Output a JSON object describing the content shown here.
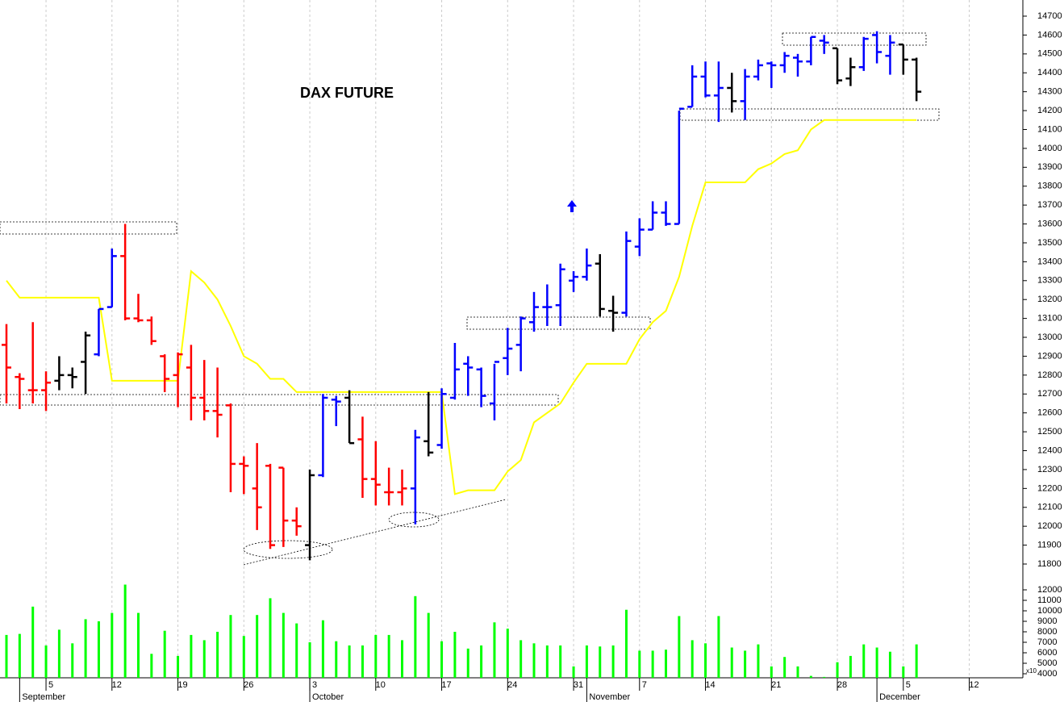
{
  "chart_data": {
    "type": "ohlc",
    "title": "DAX FUTURE",
    "categories": [
      null,
      null,
      null,
      null,
      null,
      null,
      null,
      null,
      null,
      null,
      null,
      null,
      null,
      null,
      null,
      null,
      null,
      null,
      null,
      null,
      null,
      null,
      null,
      null,
      null,
      null,
      null,
      null,
      null,
      null,
      null,
      null,
      null,
      null,
      null,
      null,
      null,
      null,
      null,
      null,
      null,
      null,
      null,
      null,
      null,
      null,
      null,
      null,
      null,
      null,
      null,
      null,
      null,
      null,
      null,
      null,
      null,
      null,
      null,
      null,
      null,
      null,
      null,
      null,
      null,
      null,
      null,
      null,
      null,
      null
    ],
    "open": [
      12960,
      12790,
      12720,
      12720,
      12770,
      12800,
      12870,
      12910,
      13160,
      13430,
      13100,
      13090,
      12900,
      12800,
      12840,
      12680,
      12610,
      12640,
      12330,
      12200,
      12320,
      12310,
      12030,
      11900,
      12270,
      12670,
      12680,
      12460,
      12250,
      12180,
      12180,
      12200,
      12450,
      12430,
      12680,
      12860,
      12830,
      12650,
      12890,
      12960,
      13080,
      13160,
      13170,
      13300,
      13320,
      13390,
      13140,
      13130,
      13480,
      13570,
      13660,
      13600,
      14220,
      14380,
      14280,
      14320,
      14250,
      14380,
      14450,
      14440,
      14480,
      14460,
      14570,
      14530,
      14370,
      14430,
      14600,
      14490,
      14550,
      14470
    ],
    "high": [
      13070,
      12810,
      13080,
      12820,
      12900,
      12840,
      13030,
      13150,
      13470,
      13600,
      13230,
      13110,
      12910,
      12920,
      12960,
      12880,
      12840,
      12650,
      12370,
      12440,
      12330,
      12310,
      12100,
      12300,
      12700,
      12690,
      12720,
      12580,
      12450,
      12310,
      12300,
      12510,
      12710,
      12730,
      12970,
      12900,
      12840,
      12860,
      13050,
      13110,
      13240,
      13280,
      13390,
      13350,
      13470,
      13440,
      13220,
      13560,
      13630,
      13720,
      13720,
      14200,
      14440,
      14460,
      14460,
      14400,
      14420,
      14470,
      14460,
      14510,
      14500,
      14590,
      14600,
      14530,
      14480,
      14590,
      14620,
      14600,
      14550,
      14480
    ],
    "low": [
      12650,
      12620,
      12650,
      12610,
      12720,
      12730,
      12700,
      12900,
      13160,
      13090,
      13080,
      12960,
      12710,
      12630,
      12560,
      12560,
      12470,
      12180,
      12170,
      11980,
      11880,
      11890,
      11950,
      11820,
      12260,
      12530,
      12440,
      12150,
      12110,
      12110,
      12110,
      12010,
      12370,
      12410,
      12670,
      12690,
      12630,
      12560,
      12800,
      12820,
      13030,
      13060,
      13060,
      13240,
      13300,
      13110,
      13030,
      13110,
      13430,
      13570,
      13590,
      13600,
      14220,
      14270,
      14140,
      14190,
      14150,
      14360,
      14320,
      14400,
      14380,
      14440,
      14500,
      14340,
      14330,
      14410,
      14450,
      14390,
      14390,
      14250
    ],
    "close": [
      12840,
      12780,
      12720,
      12760,
      12800,
      12790,
      13010,
      13150,
      13430,
      13100,
      13090,
      12980,
      12780,
      12910,
      12680,
      12610,
      12590,
      12330,
      12320,
      12100,
      11900,
      12030,
      12000,
      12270,
      12680,
      12660,
      12440,
      12250,
      12220,
      12180,
      12200,
      12470,
      12390,
      12700,
      12830,
      12840,
      12690,
      12870,
      12940,
      13100,
      13160,
      13160,
      13360,
      13320,
      13380,
      13150,
      13130,
      13510,
      13570,
      13660,
      13600,
      14210,
      14380,
      14280,
      14320,
      14250,
      14380,
      14440,
      14440,
      14490,
      14460,
      14590,
      14560,
      14360,
      14430,
      14580,
      14510,
      14560,
      14470,
      14300
    ],
    "colors": [
      "#ff0000",
      "#ff0000",
      "#ff0000",
      "#ff0000",
      "#000000",
      "#000000",
      "#000000",
      "#0000ff",
      "#0000ff",
      "#ff0000",
      "#ff0000",
      "#ff0000",
      "#ff0000",
      "#ff0000",
      "#ff0000",
      "#ff0000",
      "#ff0000",
      "#ff0000",
      "#ff0000",
      "#ff0000",
      "#ff0000",
      "#ff0000",
      "#ff0000",
      "#000000",
      "#0000ff",
      "#0000ff",
      "#000000",
      "#ff0000",
      "#ff0000",
      "#ff0000",
      "#ff0000",
      "#0000ff",
      "#000000",
      "#0000ff",
      "#0000ff",
      "#0000ff",
      "#0000ff",
      "#0000ff",
      "#0000ff",
      "#0000ff",
      "#0000ff",
      "#0000ff",
      "#0000ff",
      "#0000ff",
      "#0000ff",
      "#000000",
      "#000000",
      "#0000ff",
      "#0000ff",
      "#0000ff",
      "#0000ff",
      "#0000ff",
      "#0000ff",
      "#0000ff",
      "#0000ff",
      "#000000",
      "#0000ff",
      "#0000ff",
      "#0000ff",
      "#0000ff",
      "#0000ff",
      "#0000ff",
      "#0000ff",
      "#000000",
      "#000000",
      "#0000ff",
      "#0000ff",
      "#0000ff",
      "#000000",
      "#000000"
    ],
    "ylim": [
      11800,
      14700
    ],
    "yticks": [
      11800,
      11900,
      12000,
      12100,
      12200,
      12300,
      12400,
      12500,
      12600,
      12700,
      12800,
      12900,
      13000,
      13100,
      13200,
      13300,
      13400,
      13500,
      13600,
      13700,
      13800,
      13900,
      14000,
      14100,
      14200,
      14300,
      14400,
      14500,
      14600,
      14700
    ],
    "stop_line": {
      "color": "#ffff00",
      "values": [
        13300,
        13210,
        13210,
        13210,
        13210,
        13210,
        13210,
        13210,
        12770,
        12770,
        12770,
        12770,
        12770,
        12770,
        13350,
        13290,
        13200,
        13060,
        12900,
        12860,
        12780,
        12780,
        12710,
        12710,
        12710,
        12710,
        12710,
        12710,
        12710,
        12710,
        12710,
        12710,
        12710,
        12710,
        12170,
        12190,
        12190,
        12190,
        12290,
        12350,
        12550,
        12600,
        12650,
        12760,
        12860,
        12860,
        12860,
        12860,
        12990,
        13080,
        13140,
        13320,
        13590,
        13820,
        13820,
        13820,
        13820,
        13890,
        13920,
        13970,
        13990,
        14100,
        14150,
        14150,
        14150,
        14150,
        14150,
        14150,
        14150,
        14150
      ]
    },
    "volume": {
      "color": "#00ff00",
      "values": [
        7700,
        7800,
        10400,
        6700,
        8200,
        6900,
        9200,
        9000,
        9800,
        12500,
        9800,
        5900,
        8100,
        5700,
        7700,
        7200,
        8000,
        9600,
        7600,
        9600,
        11200,
        9800,
        8800,
        7000,
        9100,
        7100,
        6700,
        6700,
        7700,
        7700,
        7200,
        11400,
        9800,
        7100,
        8000,
        6400,
        6700,
        8900,
        8300,
        7200,
        6900,
        6700,
        6700,
        4700,
        6700,
        6600,
        6700,
        10100,
        6200,
        6200,
        6300,
        9500,
        7200,
        6900,
        9500,
        6500,
        6200,
        6800,
        4700,
        5600,
        4700,
        3800,
        3700,
        5100,
        5700,
        6800,
        6500,
        6100,
        4700,
        6800
      ],
      "ylim": [
        4000,
        12000
      ],
      "yticks": [
        4000,
        5000,
        6000,
        7000,
        8000,
        9000,
        10000,
        11000,
        12000
      ],
      "axis_note": "x10"
    },
    "xticks": [
      {
        "value": 3,
        "label": "5"
      },
      {
        "value": 8,
        "label": "12"
      },
      {
        "value": 13,
        "label": "19"
      },
      {
        "value": 18,
        "label": "26"
      },
      {
        "value": 23,
        "label": "3"
      },
      {
        "value": 28,
        "label": "10"
      },
      {
        "value": 33,
        "label": "17"
      },
      {
        "value": 38,
        "label": "24"
      },
      {
        "value": 43,
        "label": "31"
      },
      {
        "value": 48,
        "label": "7"
      },
      {
        "value": 53,
        "label": "14"
      },
      {
        "value": 58,
        "label": "21"
      },
      {
        "value": 63,
        "label": "28"
      },
      {
        "value": 68,
        "label": "5"
      },
      {
        "value": 73,
        "label": "12"
      }
    ],
    "month_ticks": [
      {
        "value": 1,
        "label": "September"
      },
      {
        "value": 23,
        "label": "October"
      },
      {
        "value": 44,
        "label": "November"
      },
      {
        "value": 66,
        "label": "December"
      }
    ],
    "grid": true
  }
}
